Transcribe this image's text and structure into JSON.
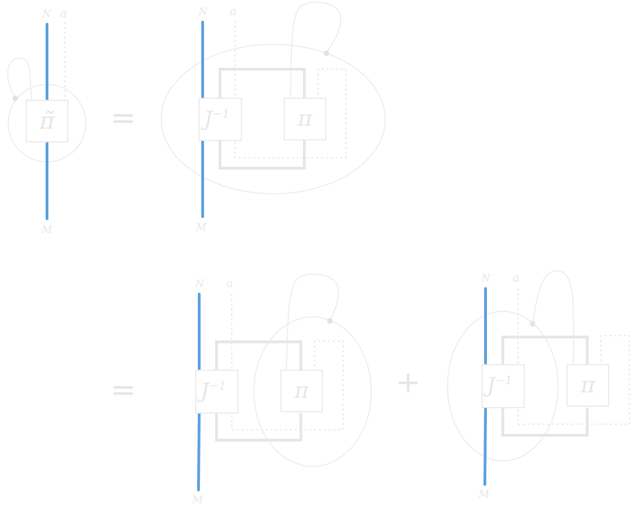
{
  "labels": {
    "N": "N",
    "M": "M",
    "a": "a",
    "pi_tilde": "π̃",
    "J_inv": "J",
    "J_inv_exp": "−1",
    "pi": "π",
    "equals": "=",
    "plus": "+"
  },
  "colors": {
    "strand": "#5aa0dd",
    "faint": "#e6e6e6",
    "background": "#ffffff"
  }
}
